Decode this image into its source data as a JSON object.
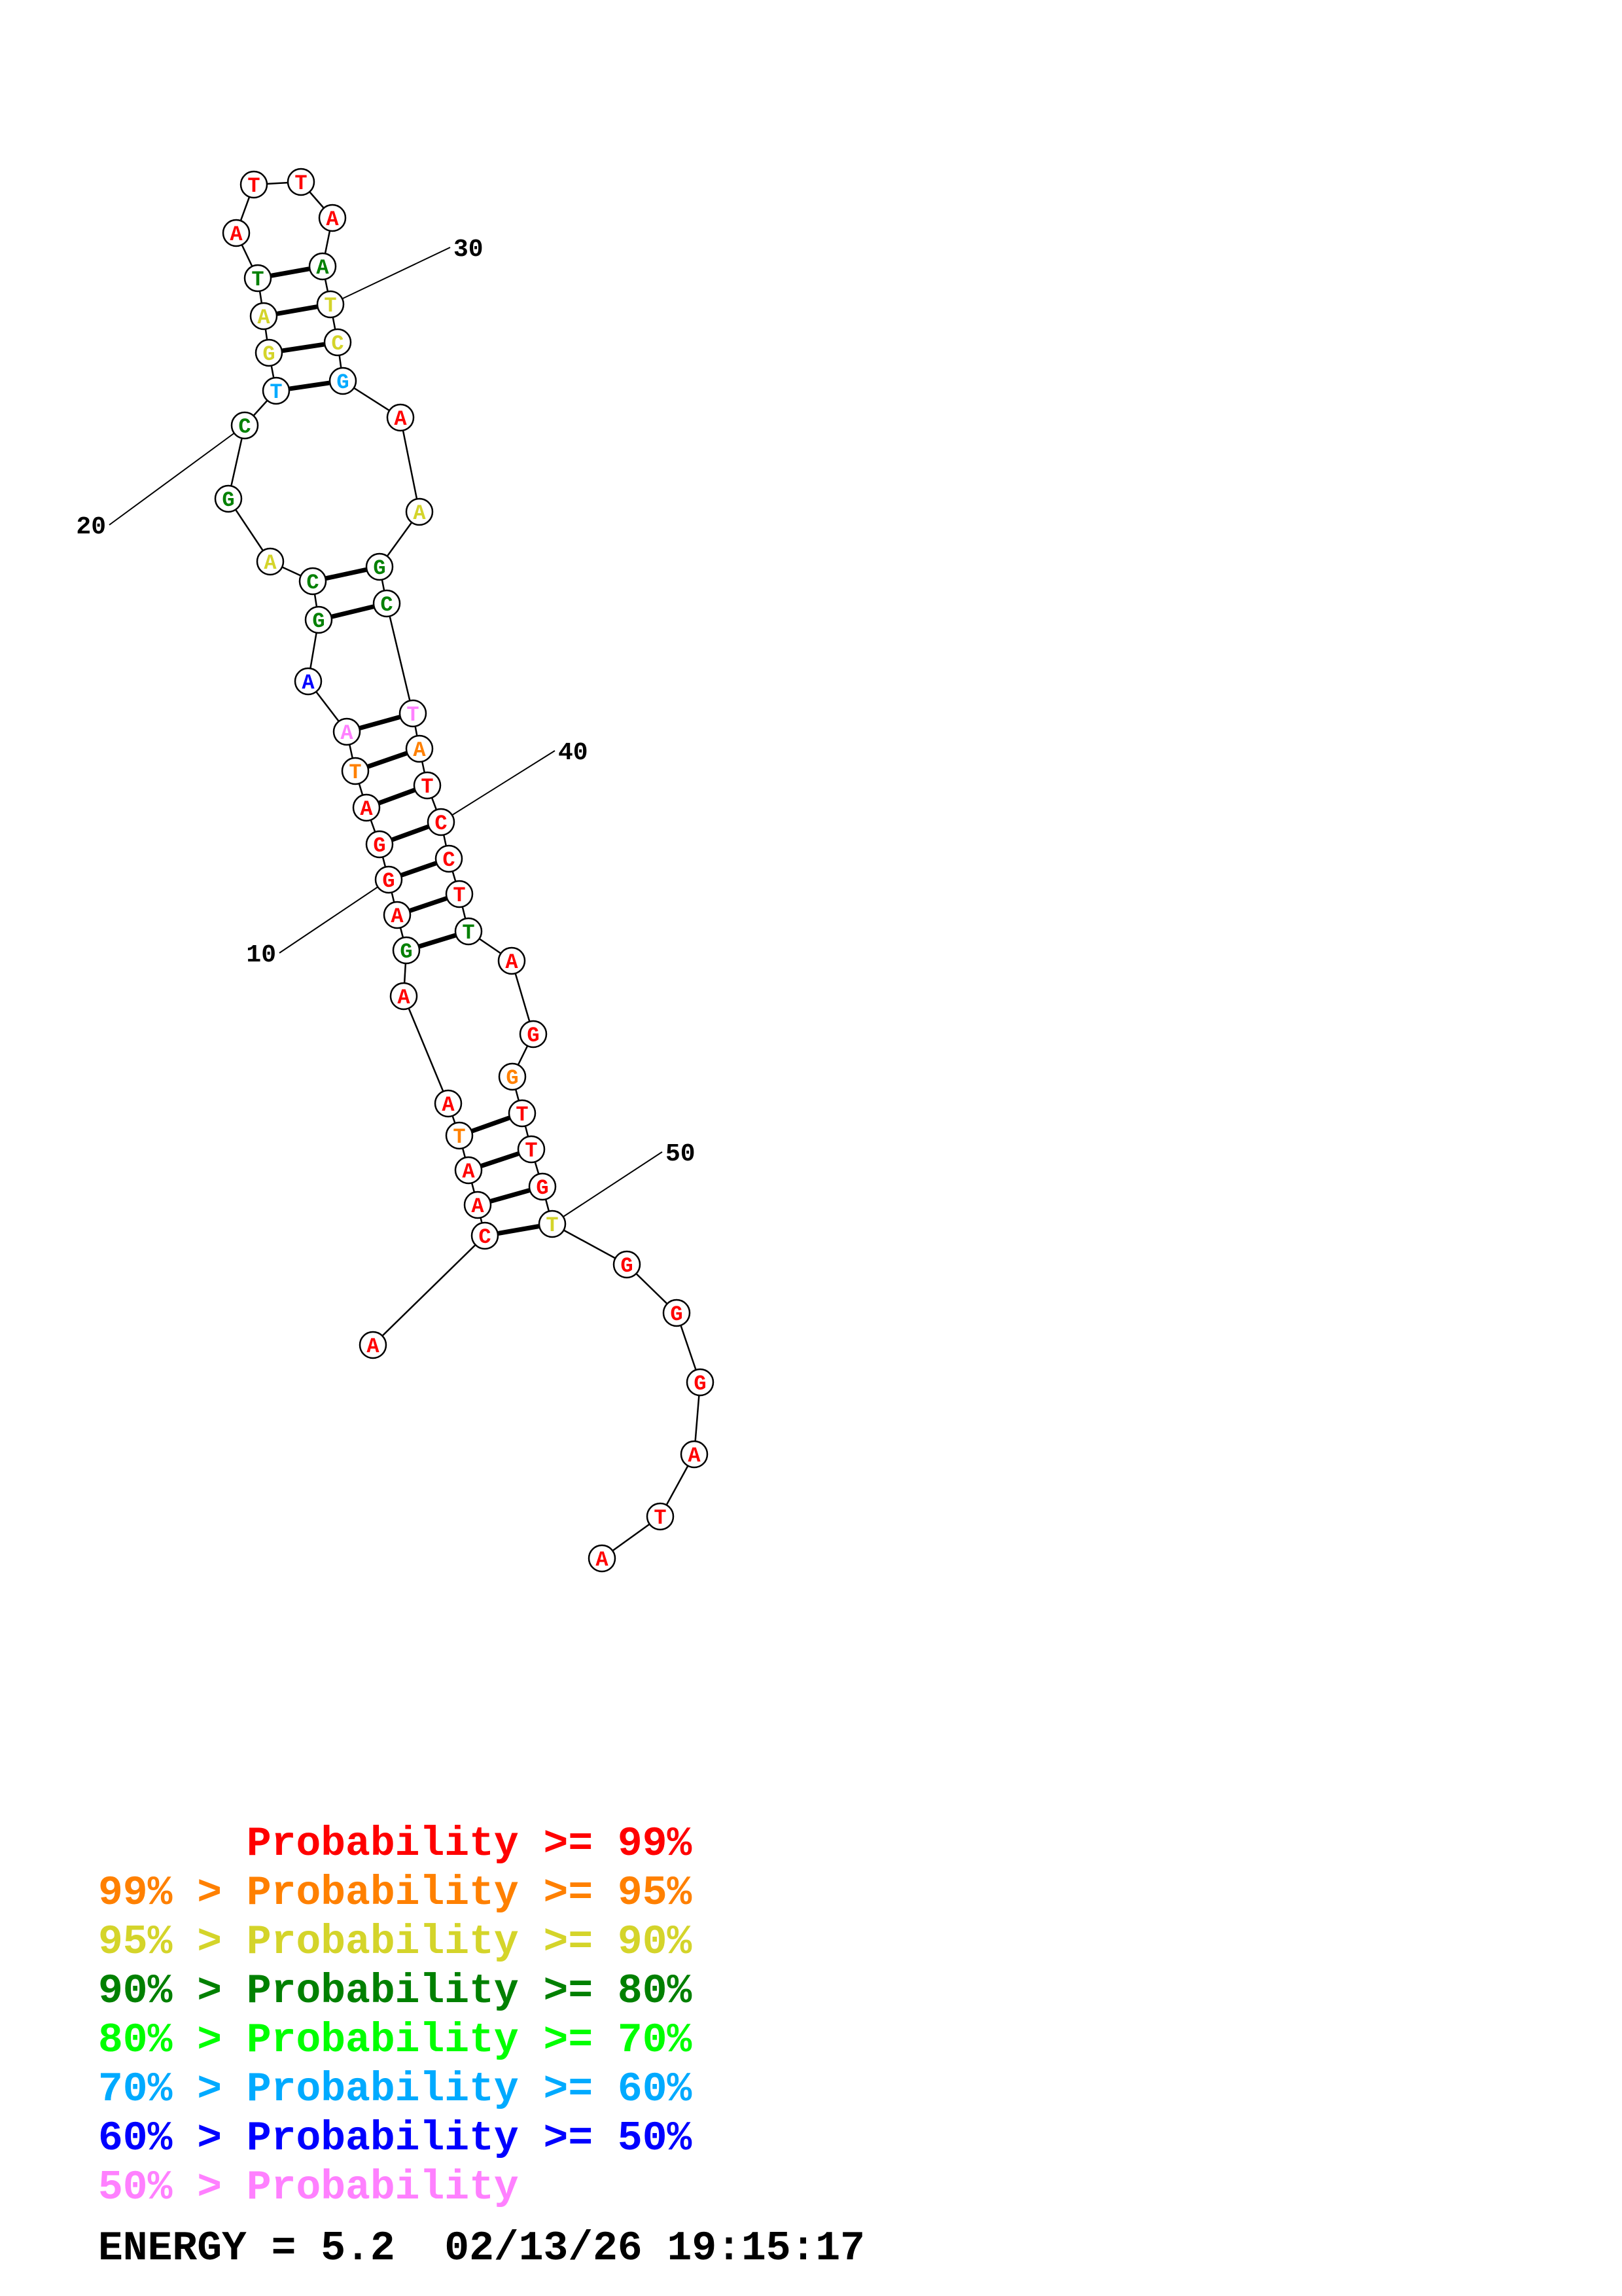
{
  "colors": {
    "p99": "#ff0000",
    "p95": "#ff8000",
    "p90": "#d4d42a",
    "p80": "#008000",
    "p70": "#00ff00",
    "p60": "#00aaff",
    "p50": "#0000ff",
    "plow": "#ff80ff"
  },
  "nucleotides": [
    {
      "n": 1,
      "base": "A",
      "p": "p99"
    },
    {
      "n": 2,
      "base": "C",
      "p": "p99"
    },
    {
      "n": 3,
      "base": "A",
      "p": "p99"
    },
    {
      "n": 4,
      "base": "A",
      "p": "p99"
    },
    {
      "n": 5,
      "base": "T",
      "p": "p95"
    },
    {
      "n": 6,
      "base": "A",
      "p": "p99"
    },
    {
      "n": 7,
      "base": "A",
      "p": "p99"
    },
    {
      "n": 8,
      "base": "G",
      "p": "p80"
    },
    {
      "n": 9,
      "base": "A",
      "p": "p99"
    },
    {
      "n": 10,
      "base": "G",
      "p": "p99"
    },
    {
      "n": 11,
      "base": "G",
      "p": "p99"
    },
    {
      "n": 12,
      "base": "A",
      "p": "p99"
    },
    {
      "n": 13,
      "base": "T",
      "p": "p95"
    },
    {
      "n": 14,
      "base": "A",
      "p": "plow"
    },
    {
      "n": 15,
      "base": "A",
      "p": "p50"
    },
    {
      "n": 16,
      "base": "G",
      "p": "p80"
    },
    {
      "n": 17,
      "base": "C",
      "p": "p80"
    },
    {
      "n": 18,
      "base": "A",
      "p": "p90"
    },
    {
      "n": 19,
      "base": "G",
      "p": "p80"
    },
    {
      "n": 20,
      "base": "C",
      "p": "p80"
    },
    {
      "n": 21,
      "base": "T",
      "p": "p60"
    },
    {
      "n": 22,
      "base": "G",
      "p": "p90"
    },
    {
      "n": 23,
      "base": "A",
      "p": "p90"
    },
    {
      "n": 24,
      "base": "T",
      "p": "p80"
    },
    {
      "n": 25,
      "base": "A",
      "p": "p99"
    },
    {
      "n": 26,
      "base": "T",
      "p": "p99"
    },
    {
      "n": 27,
      "base": "T",
      "p": "p99"
    },
    {
      "n": 28,
      "base": "A",
      "p": "p99"
    },
    {
      "n": 29,
      "base": "A",
      "p": "p80"
    },
    {
      "n": 30,
      "base": "T",
      "p": "p90"
    },
    {
      "n": 31,
      "base": "C",
      "p": "p90"
    },
    {
      "n": 32,
      "base": "G",
      "p": "p60"
    },
    {
      "n": 33,
      "base": "A",
      "p": "p99"
    },
    {
      "n": 34,
      "base": "A",
      "p": "p90"
    },
    {
      "n": 35,
      "base": "G",
      "p": "p80"
    },
    {
      "n": 36,
      "base": "C",
      "p": "p80"
    },
    {
      "n": 37,
      "base": "T",
      "p": "plow"
    },
    {
      "n": 38,
      "base": "A",
      "p": "p95"
    },
    {
      "n": 39,
      "base": "T",
      "p": "p99"
    },
    {
      "n": 40,
      "base": "C",
      "p": "p99"
    },
    {
      "n": 41,
      "base": "C",
      "p": "p99"
    },
    {
      "n": 42,
      "base": "T",
      "p": "p99"
    },
    {
      "n": 43,
      "base": "T",
      "p": "p80"
    },
    {
      "n": 44,
      "base": "A",
      "p": "p99"
    },
    {
      "n": 45,
      "base": "G",
      "p": "p99"
    },
    {
      "n": 46,
      "base": "G",
      "p": "p95"
    },
    {
      "n": 47,
      "base": "T",
      "p": "p99"
    },
    {
      "n": 48,
      "base": "T",
      "p": "p99"
    },
    {
      "n": 49,
      "base": "G",
      "p": "p99"
    },
    {
      "n": 50,
      "base": "T",
      "p": "p90"
    },
    {
      "n": 51,
      "base": "G",
      "p": "p99"
    },
    {
      "n": 52,
      "base": "G",
      "p": "p99"
    },
    {
      "n": 53,
      "base": "G",
      "p": "p99"
    },
    {
      "n": 54,
      "base": "A",
      "p": "p99"
    },
    {
      "n": 55,
      "base": "T",
      "p": "p99"
    },
    {
      "n": 56,
      "base": "A",
      "p": "p99"
    }
  ],
  "pairs": [
    [
      2,
      50
    ],
    [
      3,
      49
    ],
    [
      4,
      48
    ],
    [
      5,
      47
    ],
    [
      8,
      43
    ],
    [
      9,
      42
    ],
    [
      10,
      41
    ],
    [
      11,
      40
    ],
    [
      12,
      39
    ],
    [
      13,
      38
    ],
    [
      14,
      37
    ],
    [
      16,
      36
    ],
    [
      17,
      35
    ],
    [
      21,
      32
    ],
    [
      22,
      31
    ],
    [
      23,
      30
    ],
    [
      24,
      29
    ]
  ],
  "numbering": [
    {
      "n": 10,
      "text": "10"
    },
    {
      "n": 20,
      "text": "20"
    },
    {
      "n": 30,
      "text": "30"
    },
    {
      "n": 40,
      "text": "40"
    },
    {
      "n": 50,
      "text": "50"
    }
  ],
  "legend": [
    {
      "text": "      Probability >= 99%",
      "p": "p99"
    },
    {
      "text": "99% > Probability >= 95%",
      "p": "p95"
    },
    {
      "text": "95% > Probability >= 90%",
      "p": "p90"
    },
    {
      "text": "90% > Probability >= 80%",
      "p": "p80"
    },
    {
      "text": "80% > Probability >= 70%",
      "p": "p70"
    },
    {
      "text": "70% > Probability >= 60%",
      "p": "p60"
    },
    {
      "text": "60% > Probability >= 50%",
      "p": "p50"
    },
    {
      "text": "50% > Probability",
      "p": "plow"
    }
  ],
  "footer": "ENERGY = 5.2  02/13/26 19:15:17"
}
